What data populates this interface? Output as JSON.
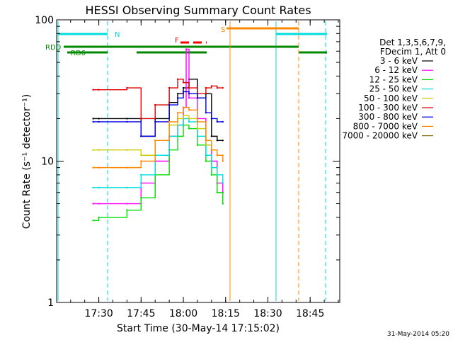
{
  "chart_data": {
    "type": "line",
    "title": "HESSI Observing Summary Count Rates",
    "xlabel": "Start Time (30-May-14 17:15:02)",
    "ylabel": "Count Rate (s⁻¹ detector⁻¹)",
    "y_scale": "log",
    "ylim": [
      1,
      100
    ],
    "xlim": [
      "17:15:02",
      "18:55:30"
    ],
    "x_ticks": [
      "17:30",
      "17:45",
      "18:00",
      "18:15",
      "18:30",
      "18:45"
    ],
    "y_ticks": [
      "1",
      "10",
      "100"
    ],
    "grid": false,
    "legend_placement": "right",
    "legend_header": [
      "Det 1,3,5,6,7,9,",
      "FDecim 1, Att 0"
    ],
    "series": [
      {
        "name": "3 - 6 keV",
        "color": "#000000",
        "x": [
          "17:28",
          "17:30",
          "17:40",
          "17:45",
          "17:50",
          "17:55",
          "17:58",
          "18:00",
          "18:02",
          "18:05",
          "18:08",
          "18:10",
          "18:12",
          "18:14"
        ],
        "y": [
          20,
          20,
          20,
          15,
          20,
          26,
          30,
          33,
          38,
          28,
          30,
          15,
          14,
          14
        ]
      },
      {
        "name": "6 - 12 keV",
        "color": "#ff00ff",
        "x": [
          "17:28",
          "17:30",
          "17:40",
          "17:45",
          "17:50",
          "17:55",
          "17:58",
          "18:00",
          "18:01",
          "18:02",
          "18:05",
          "18:08",
          "18:10",
          "18:12",
          "18:14"
        ],
        "y": [
          5,
          5,
          5,
          7,
          10,
          15,
          18,
          24,
          62,
          28,
          20,
          13,
          10,
          7,
          6
        ]
      },
      {
        "name": "12 - 25 keV",
        "color": "#00dd00",
        "x": [
          "17:28",
          "17:30",
          "17:40",
          "17:45",
          "17:50",
          "17:55",
          "17:58",
          "18:00",
          "18:02",
          "18:05",
          "18:08",
          "18:10",
          "18:12",
          "18:14"
        ],
        "y": [
          3.8,
          4,
          4.5,
          5.5,
          8,
          12,
          15,
          18,
          17,
          13,
          10,
          8,
          6,
          5
        ]
      },
      {
        "name": "25 - 50 keV",
        "color": "#00dddd",
        "x": [
          "17:28",
          "17:30",
          "17:40",
          "17:45",
          "17:50",
          "17:55",
          "17:58",
          "18:00",
          "18:02",
          "18:05",
          "18:08",
          "18:10",
          "18:12",
          "18:14"
        ],
        "y": [
          6.5,
          6.5,
          6.5,
          8,
          11,
          15,
          18,
          20,
          19,
          15,
          11,
          9,
          8,
          7
        ]
      },
      {
        "name": "50 - 100 keV",
        "color": "#cccc00",
        "x": [
          "17:28",
          "17:30",
          "17:40",
          "17:45",
          "17:50",
          "17:55",
          "17:58",
          "18:00",
          "18:02",
          "18:05",
          "18:08",
          "18:10",
          "18:12",
          "18:14"
        ],
        "y": [
          12,
          12,
          12,
          11,
          14,
          18,
          20,
          21,
          20,
          17,
          13,
          12,
          11,
          11
        ]
      },
      {
        "name": "100 - 300 keV",
        "color": "#dd0000",
        "x": [
          "17:28",
          "17:30",
          "17:40",
          "17:45",
          "17:50",
          "17:55",
          "17:58",
          "18:00",
          "18:02",
          "18:05",
          "18:08",
          "18:10",
          "18:12",
          "18:14"
        ],
        "y": [
          32,
          32,
          33,
          20,
          25,
          33,
          38,
          36,
          33,
          30,
          33,
          34,
          33,
          33
        ]
      },
      {
        "name": "300 - 800 keV",
        "color": "#0000dd",
        "x": [
          "17:28",
          "17:30",
          "17:40",
          "17:45",
          "17:50",
          "17:55",
          "17:58",
          "18:00",
          "18:02",
          "18:05",
          "18:08",
          "18:10",
          "18:12",
          "18:14"
        ],
        "y": [
          19,
          19,
          19,
          15,
          19,
          25,
          28,
          31,
          30,
          28,
          22,
          20,
          19,
          19
        ]
      },
      {
        "name": "800 - 7000 keV",
        "color": "#ff8800",
        "x": [
          "17:28",
          "17:30",
          "17:40",
          "17:45",
          "17:50",
          "17:55",
          "17:58",
          "18:00",
          "18:02",
          "18:05",
          "18:08",
          "18:10",
          "18:12",
          "18:14"
        ],
        "y": [
          9,
          9,
          9,
          10,
          14,
          19,
          22,
          24,
          23,
          19,
          14,
          12,
          11,
          10
        ]
      },
      {
        "name": "7000 - 20000 keV",
        "color": "#886600",
        "x": [],
        "y": []
      }
    ],
    "annotations": [
      {
        "label": "N",
        "color": "#00dddd"
      },
      {
        "label": "RDD",
        "color": "#008800"
      },
      {
        "label": "RD6",
        "color": "#008800"
      },
      {
        "label": "F",
        "color": "#ff0000"
      },
      {
        "label": "S",
        "color": "#ff8800"
      }
    ]
  },
  "footer_timestamp": "31-May-2014 05:20"
}
